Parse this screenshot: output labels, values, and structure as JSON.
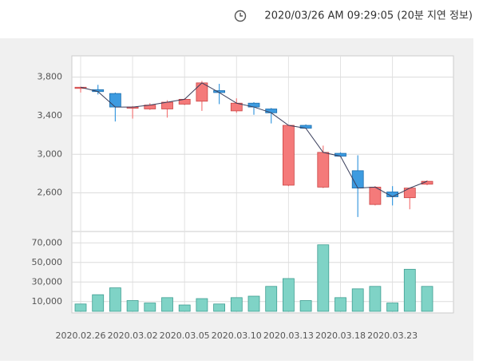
{
  "header": {
    "text": "2020/03/26 AM 09:29:05 (20분 지연 정보)"
  },
  "chart_data": [
    {
      "type": "candlestick",
      "open": [
        3685,
        3670,
        3630,
        3480,
        3470,
        3470,
        3520,
        3550,
        3660,
        3450,
        3530,
        3470,
        2680,
        3300,
        2660,
        3010,
        2830,
        2480,
        2610,
        2550,
        2690
      ],
      "high": [
        3700,
        3720,
        3640,
        3500,
        3530,
        3560,
        3580,
        3760,
        3730,
        3580,
        3540,
        3480,
        3300,
        3310,
        3090,
        3020,
        2990,
        2670,
        2670,
        2650,
        2730
      ],
      "low": [
        3640,
        3620,
        3340,
        3370,
        3460,
        3380,
        3510,
        3450,
        3520,
        3430,
        3410,
        3320,
        2670,
        3270,
        2650,
        2980,
        2350,
        2470,
        2470,
        2430,
        2680
      ],
      "close": [
        3695,
        3650,
        3490,
        3490,
        3510,
        3540,
        3570,
        3740,
        3640,
        3530,
        3490,
        3430,
        3300,
        3270,
        3020,
        2980,
        2650,
        2660,
        2560,
        2650,
        2720
      ],
      "up_color": "#f47a7a",
      "down_color": "#3d9be0",
      "line_color": "#3a3f5c",
      "ylim": [
        2200,
        4020
      ],
      "yticks": [
        {
          "value": 2600,
          "label": "2,600"
        },
        {
          "value": 3000,
          "label": "3,000"
        },
        {
          "value": 3400,
          "label": "3,400"
        },
        {
          "value": 3800,
          "label": "3,800"
        }
      ],
      "grid": true
    },
    {
      "type": "bar",
      "categories": [
        "2020.02.26",
        null,
        null,
        "2020.03.02",
        null,
        null,
        "2020.03.05",
        null,
        null,
        "2020.03.10",
        null,
        null,
        "2020.03.13",
        null,
        null,
        "2020.03.18",
        null,
        null,
        "2020.03.23",
        null,
        null
      ],
      "values": [
        7500,
        17000,
        24000,
        11000,
        8500,
        14000,
        6500,
        13000,
        7500,
        14000,
        15500,
        25500,
        33500,
        11000,
        68000,
        14000,
        23000,
        25500,
        8500,
        43000,
        25500
      ],
      "color": "#7fd3c6",
      "ylim": [
        0,
        80000
      ],
      "yticks": [
        {
          "value": 10000,
          "label": "10,000"
        },
        {
          "value": 30000,
          "label": "30,000"
        },
        {
          "value": 50000,
          "label": "50,000"
        },
        {
          "value": 70000,
          "label": "70,000"
        }
      ],
      "grid": true
    }
  ]
}
